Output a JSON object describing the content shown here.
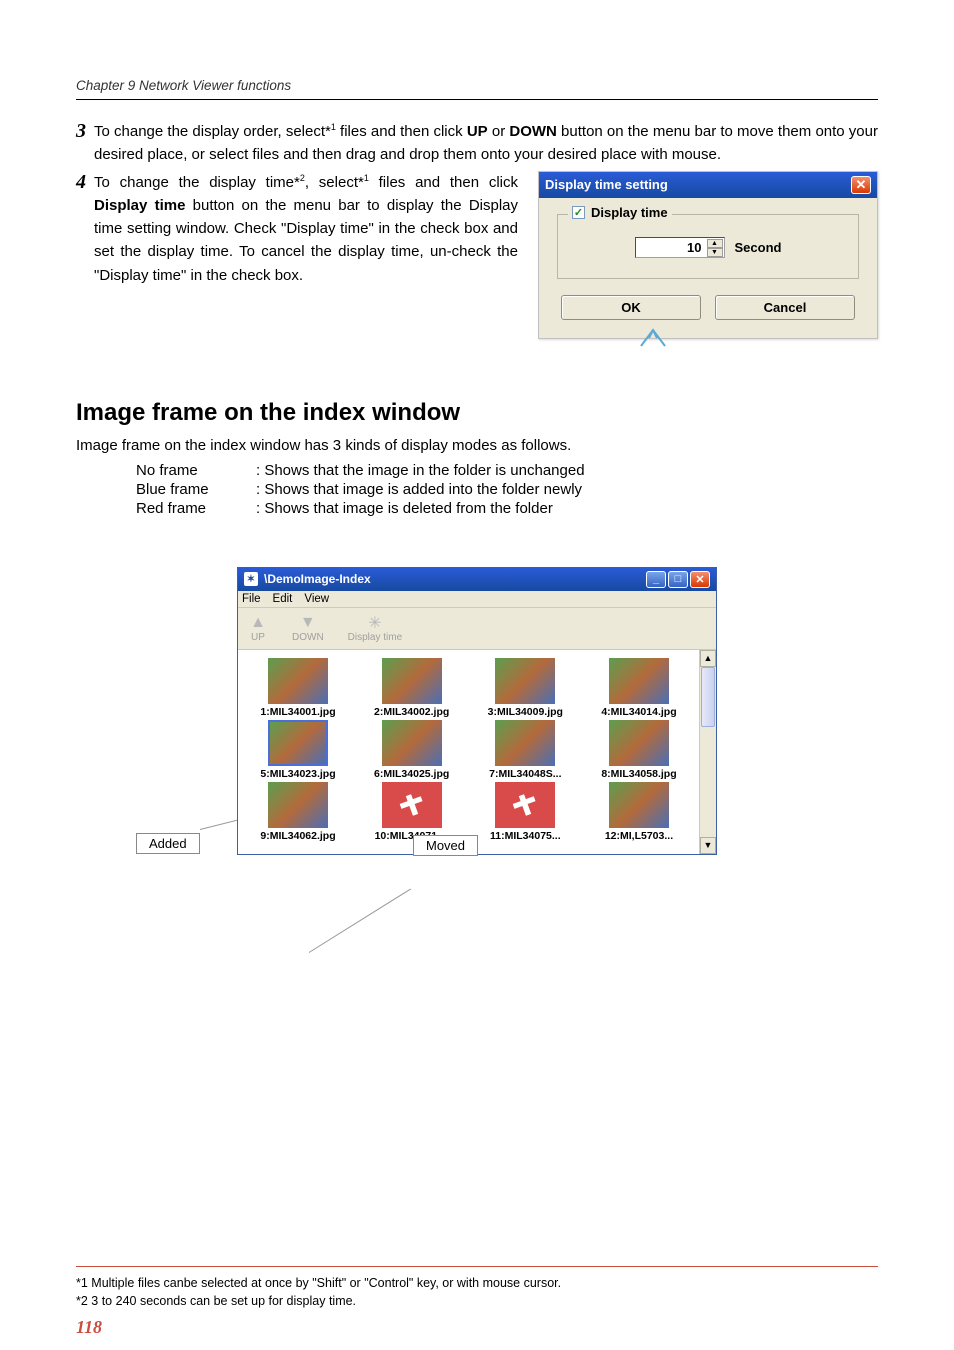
{
  "chapter_header": "Chapter 9 Network Viewer functions",
  "step3": {
    "num": "3",
    "pre": "To change the display order, select*",
    "sup": "1",
    "post1": " files and then click ",
    "up": "UP",
    "or": " or ",
    "down": "DOWN",
    "post2": " button on the menu bar to move them onto your desired place, or select files and then drag and drop them onto your desired place with mouse."
  },
  "step4": {
    "num": "4",
    "pre": "To change the display time*",
    "sup1": "2",
    "mid1": ", select*",
    "sup2": "1",
    "mid2": " files and then click ",
    "bold": "Display time",
    "post": " button on the menu bar to display the Display time setting window. Check \"Display time\" in the check box and set the display time. To cancel the display time, un-check the \"Display time\" in the check box."
  },
  "dialog": {
    "title": "Display time setting",
    "checkbox_label": "Display time",
    "value": "10",
    "second": "Second",
    "ok": "OK",
    "cancel": "Cancel"
  },
  "section_title": "Image frame on the index window",
  "section_para": "Image frame on the index window has 3 kinds of display modes as follows.",
  "frames": [
    {
      "key": "No frame",
      "val": ": Shows that the image in the folder is unchanged"
    },
    {
      "key": "Blue frame",
      "val": ": Shows that image is added into the folder newly"
    },
    {
      "key": "Red frame",
      "val": ": Shows that image is deleted from the folder"
    }
  ],
  "index_window": {
    "title": "\\DemoImage-Index",
    "menus": [
      "File",
      "Edit",
      "View"
    ],
    "toolbar": [
      {
        "icon": "▲",
        "label": "UP"
      },
      {
        "icon": "▼",
        "label": "DOWN"
      },
      {
        "icon": "✳",
        "label": "Display time"
      }
    ],
    "rows": [
      [
        {
          "label": "1:MIL34001.jpg",
          "frame": ""
        },
        {
          "label": "2:MIL34002.jpg",
          "frame": ""
        },
        {
          "label": "3:MIL34009.jpg",
          "frame": ""
        },
        {
          "label": "4:MIL34014.jpg",
          "frame": ""
        }
      ],
      [
        {
          "label": "5:MIL34023.jpg",
          "frame": "blueframe"
        },
        {
          "label": "6:MIL34025.jpg",
          "frame": ""
        },
        {
          "label": "7:MIL34048S...",
          "frame": ""
        },
        {
          "label": "8:MIL34058.jpg",
          "frame": ""
        }
      ],
      [
        {
          "label": "9:MIL34062.jpg",
          "frame": ""
        },
        {
          "label": "10:MIL34071....",
          "frame": "redframe"
        },
        {
          "label": "11:MIL34075...",
          "frame": "redframe"
        },
        {
          "label": "12:MI,L5703...",
          "frame": ""
        }
      ]
    ]
  },
  "callouts": {
    "added": "Added",
    "moved": "Moved"
  },
  "footnotes": {
    "f1": "*1 Multiple files canbe selected at once by \"Shift\" or \"Control\" key, or with mouse cursor.",
    "f2": "*2 3 to 240 seconds can be set up for display time."
  },
  "page_num": "118"
}
